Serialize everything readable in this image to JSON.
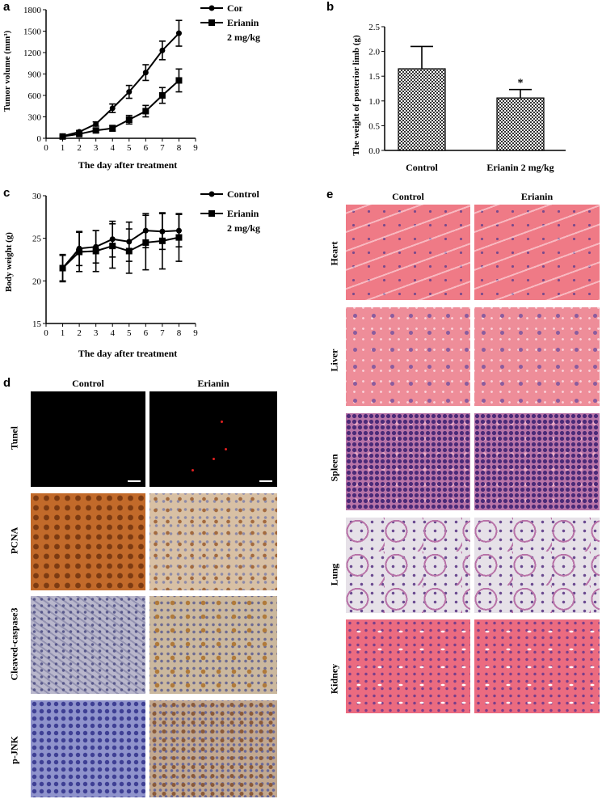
{
  "panels": {
    "a": "a",
    "b": "b",
    "c": "c",
    "d": "d",
    "e": "e"
  },
  "chart_data": [
    {
      "id": "a",
      "type": "line",
      "xlabel": "The day after treatment",
      "ylabel": "Tumor volume (mm³)",
      "xlim": [
        0,
        9
      ],
      "ylim": [
        0,
        1800
      ],
      "xticks": [
        "0",
        "1",
        "2",
        "3",
        "4",
        "5",
        "6",
        "7",
        "8",
        "9"
      ],
      "yticks": [
        "0",
        "300",
        "600",
        "900",
        "1200",
        "1500",
        "1800"
      ],
      "legend": [
        "Control",
        "Erianin",
        "2 mg/kg"
      ],
      "legend_position": "top-right",
      "series": [
        {
          "name": "Control",
          "marker": "circle",
          "x": [
            1,
            2,
            3,
            4,
            5,
            6,
            7,
            8
          ],
          "y": [
            30,
            90,
            200,
            420,
            650,
            920,
            1230,
            1470
          ],
          "err": [
            10,
            20,
            30,
            60,
            90,
            110,
            130,
            180
          ]
        },
        {
          "name": "Erianin 2 mg/kg",
          "marker": "square",
          "x": [
            1,
            2,
            3,
            4,
            5,
            6,
            7,
            8
          ],
          "y": [
            25,
            60,
            110,
            140,
            260,
            380,
            600,
            810
          ],
          "err": [
            10,
            15,
            25,
            40,
            60,
            80,
            110,
            160
          ]
        }
      ]
    },
    {
      "id": "b",
      "type": "bar",
      "categories": [
        "Control",
        "Erianin 2 mg/kg"
      ],
      "values": [
        1.65,
        1.06
      ],
      "errors": [
        0.45,
        0.17
      ],
      "ylabel": "The weight of posterior limb (g)",
      "ylim": [
        0,
        2.5
      ],
      "yticks": [
        "0.0",
        "0.5",
        "1.0",
        "1.5",
        "2.0",
        "2.5"
      ],
      "annotation": "*"
    },
    {
      "id": "c",
      "type": "line",
      "xlabel": "The day after treatment",
      "ylabel": "Body weight (g)",
      "xlim": [
        0,
        9
      ],
      "ylim": [
        15,
        30
      ],
      "xticks": [
        "0",
        "1",
        "2",
        "3",
        "4",
        "5",
        "6",
        "7",
        "8",
        "9"
      ],
      "yticks": [
        "15",
        "20",
        "25",
        "30"
      ],
      "legend": [
        "Control",
        "Erianin",
        "2 mg/kg"
      ],
      "legend_position": "top-right",
      "series": [
        {
          "name": "Control",
          "marker": "circle",
          "x": [
            1,
            2,
            3,
            4,
            5,
            6,
            7,
            8
          ],
          "y": [
            21.5,
            23.8,
            24.0,
            24.9,
            24.6,
            25.9,
            25.8,
            25.9
          ],
          "err": [
            1.5,
            2.0,
            1.9,
            2.1,
            2.3,
            2.0,
            2.1,
            1.9
          ]
        },
        {
          "name": "Erianin 2 mg/kg",
          "marker": "square",
          "x": [
            1,
            2,
            3,
            4,
            5,
            6,
            7,
            8
          ],
          "y": [
            21.5,
            23.4,
            23.5,
            24.1,
            23.5,
            24.5,
            24.7,
            25.1
          ],
          "err": [
            1.6,
            2.3,
            2.4,
            2.6,
            2.6,
            3.2,
            3.3,
            2.8
          ]
        }
      ]
    }
  ],
  "panel_d": {
    "columns": [
      "Control",
      "Erianin"
    ],
    "rows": [
      "Tunel",
      "PCNA",
      "Cleaved-caspase3",
      "p-JNK"
    ]
  },
  "panel_e": {
    "columns": [
      "Control",
      "Erianin"
    ],
    "rows": [
      "Heart",
      "Liver",
      "Spleen",
      "Lung",
      "Kidney"
    ]
  }
}
